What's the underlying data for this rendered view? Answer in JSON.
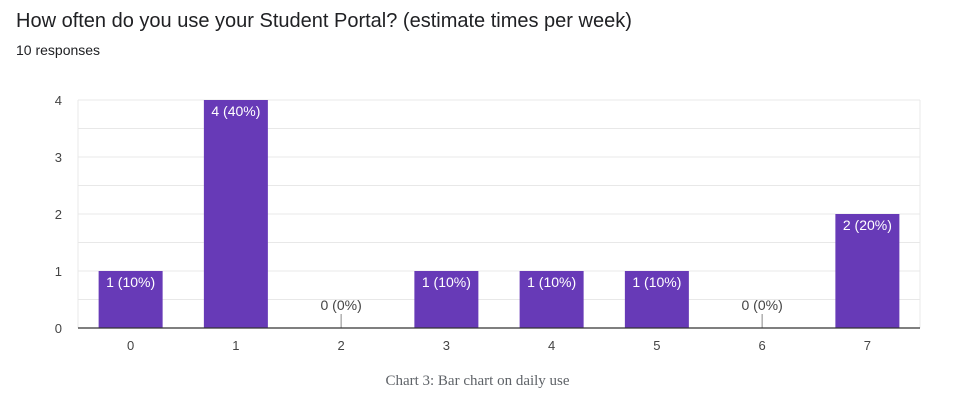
{
  "question": {
    "title": "How often do you use your Student Portal? (estimate times per week)",
    "responses": "10 responses"
  },
  "caption": "Chart 3: Bar chart on daily use",
  "colors": {
    "bar": "#673ab7",
    "bar_label_inside": "#ffffff",
    "bar_label_outside": "#444444",
    "grid": "#e8e8e8",
    "axis": "#333333"
  },
  "chart_data": {
    "type": "bar",
    "categories": [
      "0",
      "1",
      "2",
      "3",
      "4",
      "5",
      "6",
      "7"
    ],
    "values": [
      1,
      4,
      0,
      1,
      1,
      1,
      0,
      2
    ],
    "data_labels": [
      "1 (10%)",
      "4 (40%)",
      "0 (0%)",
      "1 (10%)",
      "1 (10%)",
      "1 (10%)",
      "0 (0%)",
      "2 (20%)"
    ],
    "ylim": [
      0,
      4
    ],
    "yticks": [
      0,
      1,
      2,
      3,
      4
    ],
    "grid": true,
    "title": "How often do you use your Student Portal? (estimate times per week)",
    "xlabel": "",
    "ylabel": ""
  }
}
